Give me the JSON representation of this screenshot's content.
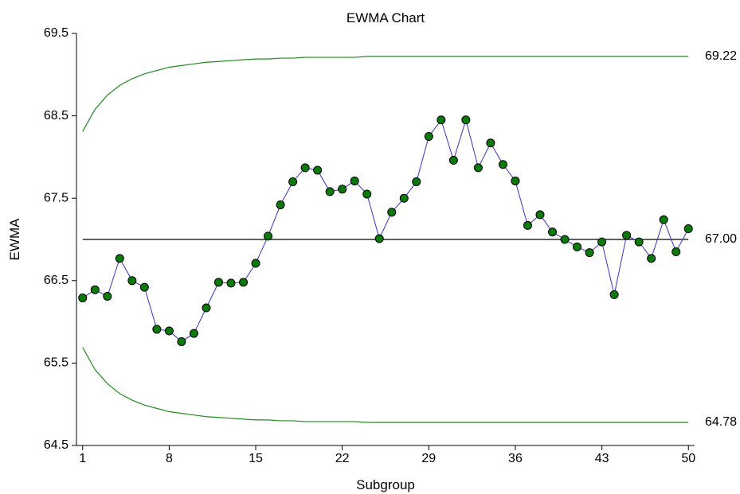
{
  "chart_data": {
    "type": "line",
    "title": "EWMA Chart",
    "xlabel": "Subgroup",
    "ylabel": "EWMA",
    "xlim": [
      0.5,
      50.5
    ],
    "ylim": [
      64.5,
      69.5
    ],
    "x_ticks": [
      1,
      8,
      15,
      22,
      29,
      36,
      43,
      50
    ],
    "x_tick_labels": [
      "1",
      "8",
      "15",
      "22",
      "29",
      "36",
      "43",
      "50"
    ],
    "y_ticks": [
      64.5,
      65.5,
      66.5,
      67.5,
      68.5,
      69.5
    ],
    "y_tick_labels": [
      "64.5",
      "65.5",
      "66.5",
      "67.5",
      "68.5",
      "69.5"
    ],
    "grid": false,
    "legend": "none",
    "center_line": {
      "value": 67.0,
      "label": "67.00",
      "color": "#000000"
    },
    "ucl": {
      "label": "69.22",
      "color": "#228b22",
      "values": [
        68.31,
        68.58,
        68.75,
        68.87,
        68.95,
        69.01,
        69.05,
        69.09,
        69.11,
        69.13,
        69.15,
        69.16,
        69.17,
        69.18,
        69.19,
        69.19,
        69.2,
        69.2,
        69.21,
        69.21,
        69.21,
        69.21,
        69.21,
        69.22,
        69.22,
        69.22,
        69.22,
        69.22,
        69.22,
        69.22,
        69.22,
        69.22,
        69.22,
        69.22,
        69.22,
        69.22,
        69.22,
        69.22,
        69.22,
        69.22,
        69.22,
        69.22,
        69.22,
        69.22,
        69.22,
        69.22,
        69.22,
        69.22,
        69.22,
        69.22
      ]
    },
    "lcl": {
      "label": "64.78",
      "color": "#228b22",
      "values": [
        65.69,
        65.42,
        65.25,
        65.13,
        65.05,
        64.99,
        64.95,
        64.91,
        64.89,
        64.87,
        64.85,
        64.84,
        64.83,
        64.82,
        64.81,
        64.81,
        64.8,
        64.8,
        64.79,
        64.79,
        64.79,
        64.79,
        64.79,
        64.78,
        64.78,
        64.78,
        64.78,
        64.78,
        64.78,
        64.78,
        64.78,
        64.78,
        64.78,
        64.78,
        64.78,
        64.78,
        64.78,
        64.78,
        64.78,
        64.78,
        64.78,
        64.78,
        64.78,
        64.78,
        64.78,
        64.78,
        64.78,
        64.78,
        64.78,
        64.78
      ]
    },
    "series": [
      {
        "line_color": "#3333cc",
        "marker_color": "#0a7a0a",
        "values": [
          66.29,
          66.39,
          66.31,
          66.77,
          66.5,
          66.42,
          65.91,
          65.89,
          65.76,
          65.86,
          66.17,
          66.48,
          66.47,
          66.48,
          66.71,
          67.04,
          67.42,
          67.7,
          67.87,
          67.84,
          67.58,
          67.61,
          67.71,
          67.55,
          67.01,
          67.33,
          67.5,
          67.7,
          68.25,
          68.45,
          67.96,
          68.45,
          67.87,
          68.17,
          67.91,
          67.71,
          67.17,
          67.3,
          67.09,
          67.0,
          66.91,
          66.84,
          66.97,
          66.33,
          67.05,
          66.97,
          66.77,
          67.24,
          66.85,
          67.13
        ]
      }
    ]
  }
}
